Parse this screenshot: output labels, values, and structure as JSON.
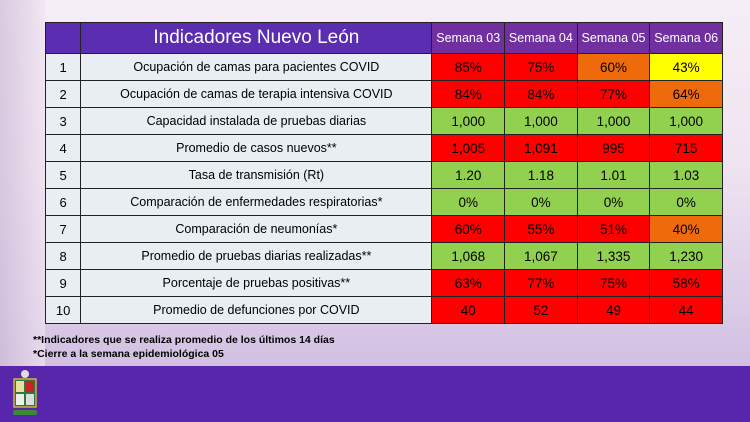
{
  "table": {
    "title": "Indicadores Nuevo León",
    "weeks": [
      "Semana 03",
      "Semana 04",
      "Semana 05",
      "Semana 06"
    ],
    "rows": [
      {
        "n": "1",
        "label": "Ocupación de camas para pacientes COVID",
        "values": [
          "85%",
          "75%",
          "60%",
          "43%"
        ],
        "colors": [
          "red",
          "red",
          "orange",
          "yellow"
        ]
      },
      {
        "n": "2",
        "label": "Ocupación de camas de terapia intensiva COVID",
        "values": [
          "84%",
          "84%",
          "77%",
          "64%"
        ],
        "colors": [
          "red",
          "red",
          "red",
          "orange"
        ]
      },
      {
        "n": "3",
        "label": "Capacidad instalada de pruebas diarias",
        "values": [
          "1,000",
          "1,000",
          "1,000",
          "1,000"
        ],
        "colors": [
          "green",
          "green",
          "green",
          "green"
        ]
      },
      {
        "n": "4",
        "label": "Promedio de casos nuevos**",
        "values": [
          "1,005",
          "1,091",
          "995",
          "715"
        ],
        "colors": [
          "red",
          "red",
          "red",
          "red"
        ]
      },
      {
        "n": "5",
        "label": "Tasa de transmisión (Rt)",
        "values": [
          "1.20",
          "1.18",
          "1.01",
          "1.03"
        ],
        "colors": [
          "green",
          "green",
          "green",
          "green"
        ]
      },
      {
        "n": "6",
        "label": "Comparación de enfermedades respiratorias*",
        "values": [
          "0%",
          "0%",
          "0%",
          "0%"
        ],
        "colors": [
          "green",
          "green",
          "green",
          "green"
        ]
      },
      {
        "n": "7",
        "label": "Comparación de neumonías*",
        "values": [
          "60%",
          "55%",
          "51%",
          "40%"
        ],
        "colors": [
          "red",
          "red",
          "red",
          "orange"
        ]
      },
      {
        "n": "8",
        "label": "Promedio de pruebas diarias realizadas**",
        "values": [
          "1,068",
          "1,067",
          "1,335",
          "1,230"
        ],
        "colors": [
          "green",
          "green",
          "green",
          "green"
        ]
      },
      {
        "n": "9",
        "label": "Porcentaje de pruebas positivas**",
        "values": [
          "63%",
          "77%",
          "75%",
          "58%"
        ],
        "colors": [
          "red",
          "red",
          "red",
          "red"
        ]
      },
      {
        "n": "10",
        "label": "Promedio de defunciones por COVID",
        "values": [
          "40",
          "52",
          "49",
          "44"
        ],
        "colors": [
          "red",
          "red",
          "red",
          "red"
        ]
      }
    ]
  },
  "notes": [
    "**Indicadores que se realiza promedio de los últimos 14 días",
    "*Cierre a la semana epidemiológica 05"
  ]
}
